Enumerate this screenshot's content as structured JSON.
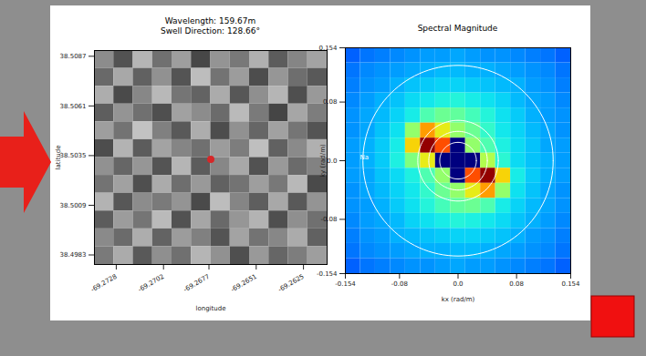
{
  "chart_data": [
    {
      "type": "heatmap",
      "title": "Wavelength: 159.67m",
      "subtitle": "Swell Direction: 128.66°",
      "x_label": "longitude",
      "y_label": "latitude",
      "xlim": [
        -69.274,
        -69.2612
      ],
      "xticks": [
        -69.2728,
        -69.2702,
        -69.2677,
        -69.2651,
        -69.2625
      ],
      "ylim": [
        38.4978,
        38.509
      ],
      "yticks": [
        38.4983,
        38.5009,
        38.5035,
        38.5061,
        38.5087
      ],
      "color": "gray",
      "zlim": [
        0,
        1
      ],
      "cells": [
        [
          0.55,
          0.32,
          0.71,
          0.44,
          0.62,
          0.28,
          0.58,
          0.47,
          0.69,
          0.36,
          0.52,
          0.64
        ],
        [
          0.41,
          0.66,
          0.38,
          0.57,
          0.33,
          0.74,
          0.45,
          0.61,
          0.3,
          0.59,
          0.43,
          0.35
        ],
        [
          0.68,
          0.29,
          0.53,
          0.72,
          0.46,
          0.39,
          0.67,
          0.34,
          0.56,
          0.71,
          0.31,
          0.6
        ],
        [
          0.37,
          0.58,
          0.44,
          0.31,
          0.63,
          0.55,
          0.42,
          0.73,
          0.48,
          0.27,
          0.65,
          0.49
        ],
        [
          0.62,
          0.45,
          0.76,
          0.5,
          0.35,
          0.68,
          0.3,
          0.57,
          0.4,
          0.63,
          0.46,
          0.33
        ],
        [
          0.3,
          0.7,
          0.36,
          0.64,
          0.52,
          0.44,
          0.61,
          0.49,
          0.75,
          0.38,
          0.54,
          0.69
        ],
        [
          0.57,
          0.4,
          0.59,
          0.33,
          0.71,
          0.36,
          0.53,
          0.66,
          0.32,
          0.6,
          0.42,
          0.51
        ],
        [
          0.45,
          0.63,
          0.31,
          0.67,
          0.43,
          0.6,
          0.38,
          0.45,
          0.62,
          0.47,
          0.72,
          0.29
        ],
        [
          0.7,
          0.34,
          0.55,
          0.48,
          0.58,
          0.29,
          0.74,
          0.52,
          0.37,
          0.66,
          0.35,
          0.58
        ],
        [
          0.36,
          0.61,
          0.46,
          0.73,
          0.32,
          0.65,
          0.41,
          0.59,
          0.7,
          0.31,
          0.56,
          0.44
        ],
        [
          0.54,
          0.42,
          0.68,
          0.39,
          0.61,
          0.5,
          0.33,
          0.64,
          0.45,
          0.53,
          0.67,
          0.38
        ],
        [
          0.48,
          0.67,
          0.35,
          0.56,
          0.44,
          0.71,
          0.57,
          0.31,
          0.6,
          0.4,
          0.49,
          0.62
        ]
      ],
      "markers": [
        {
          "x": -69.2676,
          "y": 38.5033,
          "color": "#d62728"
        }
      ]
    },
    {
      "type": "heatmap",
      "title": "Spectral Magnitude",
      "x_label": "kx (rad/m)",
      "y_label": "ky (rad/m)",
      "xlim": [
        -0.154,
        0.154
      ],
      "xticks": [
        -0.154,
        -0.08,
        {
          "value": 0,
          "label": "0.0"
        },
        0.08,
        0.154
      ],
      "ylim": [
        -0.154,
        0.154
      ],
      "yticks": [
        -0.154,
        -0.08,
        {
          "value": 0,
          "label": "0.0"
        },
        0.08,
        0.154
      ],
      "color": "jet",
      "zlim": [
        0,
        1
      ],
      "cells": [
        [
          0.22,
          0.24,
          0.25,
          0.26,
          0.27,
          0.28,
          0.28,
          0.29,
          0.28,
          0.27,
          0.27,
          0.26,
          0.25,
          0.24,
          0.22
        ],
        [
          0.24,
          0.26,
          0.27,
          0.28,
          0.29,
          0.3,
          0.31,
          0.31,
          0.3,
          0.3,
          0.29,
          0.28,
          0.27,
          0.26,
          0.24
        ],
        [
          0.25,
          0.27,
          0.28,
          0.3,
          0.32,
          0.33,
          0.34,
          0.34,
          0.33,
          0.32,
          0.31,
          0.3,
          0.28,
          0.27,
          0.25
        ],
        [
          0.26,
          0.28,
          0.3,
          0.32,
          0.35,
          0.37,
          0.39,
          0.4,
          0.38,
          0.36,
          0.34,
          0.31,
          0.29,
          0.28,
          0.26
        ],
        [
          0.27,
          0.29,
          0.31,
          0.34,
          0.38,
          0.45,
          0.48,
          0.47,
          0.44,
          0.4,
          0.36,
          0.33,
          0.3,
          0.28,
          0.27
        ],
        [
          0.27,
          0.29,
          0.32,
          0.36,
          0.52,
          0.72,
          0.62,
          0.52,
          0.48,
          0.42,
          0.37,
          0.34,
          0.31,
          0.29,
          0.27
        ],
        [
          0.28,
          0.3,
          0.33,
          0.38,
          0.66,
          0.98,
          0.8,
          0.0,
          0.52,
          0.45,
          0.39,
          0.35,
          0.32,
          0.29,
          0.28
        ],
        [
          0.28,
          0.3,
          0.33,
          0.39,
          0.5,
          0.62,
          0.0,
          0.0,
          0.0,
          0.55,
          0.41,
          0.35,
          0.32,
          0.3,
          0.28
        ],
        [
          0.28,
          0.29,
          0.32,
          0.35,
          0.39,
          0.45,
          0.52,
          0.0,
          0.8,
          0.98,
          0.66,
          0.38,
          0.33,
          0.3,
          0.28
        ],
        [
          0.27,
          0.29,
          0.31,
          0.34,
          0.37,
          0.42,
          0.48,
          0.52,
          0.62,
          0.72,
          0.52,
          0.36,
          0.32,
          0.29,
          0.27
        ],
        [
          0.27,
          0.28,
          0.3,
          0.33,
          0.36,
          0.4,
          0.44,
          0.47,
          0.48,
          0.45,
          0.38,
          0.34,
          0.31,
          0.29,
          0.27
        ],
        [
          0.26,
          0.28,
          0.29,
          0.31,
          0.34,
          0.36,
          0.38,
          0.4,
          0.39,
          0.37,
          0.35,
          0.32,
          0.3,
          0.28,
          0.26
        ],
        [
          0.25,
          0.27,
          0.28,
          0.3,
          0.31,
          0.32,
          0.33,
          0.34,
          0.34,
          0.33,
          0.32,
          0.3,
          0.28,
          0.27,
          0.25
        ],
        [
          0.24,
          0.26,
          0.27,
          0.28,
          0.29,
          0.3,
          0.3,
          0.31,
          0.31,
          0.3,
          0.29,
          0.28,
          0.27,
          0.26,
          0.24
        ],
        [
          0.22,
          0.24,
          0.25,
          0.26,
          0.27,
          0.27,
          0.28,
          0.29,
          0.28,
          0.28,
          0.27,
          0.26,
          0.25,
          0.24,
          0.22
        ]
      ],
      "circles": [
        0.025,
        0.04,
        0.055,
        0.13
      ],
      "annotations": [
        {
          "text": "Na",
          "x": -0.128,
          "y": 0.005
        }
      ]
    }
  ]
}
